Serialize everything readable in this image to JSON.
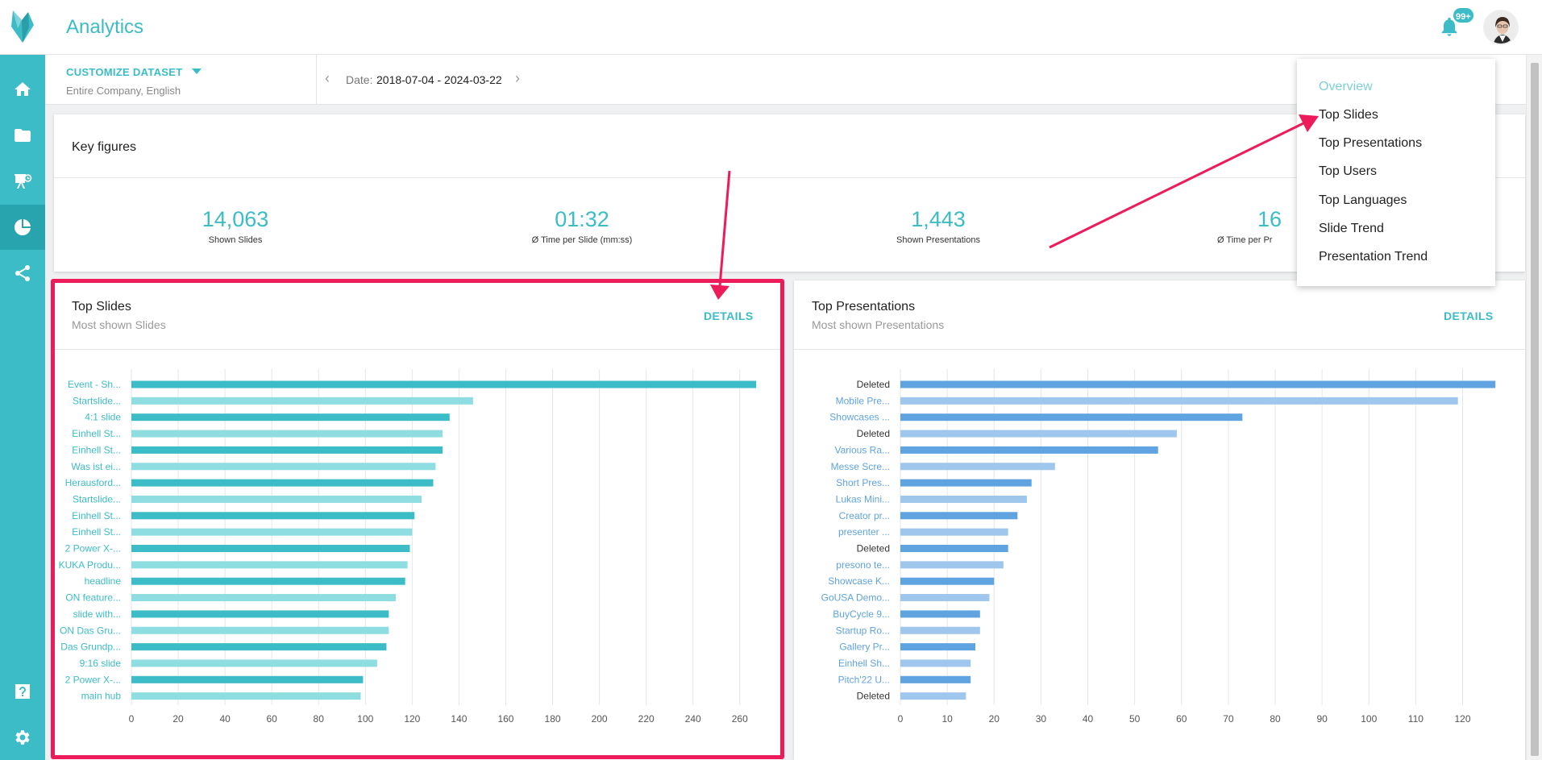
{
  "header": {
    "app_title": "Analytics",
    "notification_badge": "99+",
    "brand_color": "#3cbcc7"
  },
  "sidebar": {
    "items": [
      {
        "name": "home",
        "icon": "home-icon"
      },
      {
        "name": "folders",
        "icon": "folder-icon"
      },
      {
        "name": "presentations",
        "icon": "presentation-icon"
      },
      {
        "name": "analytics",
        "icon": "pie-chart-icon",
        "active": true
      },
      {
        "name": "share",
        "icon": "share-icon"
      }
    ],
    "bottom_items": [
      {
        "name": "help",
        "icon": "help-icon"
      },
      {
        "name": "settings",
        "icon": "gear-icon"
      }
    ]
  },
  "filter": {
    "dataset_label": "CUSTOMIZE DATASET",
    "dataset_value": "Entire Company, English",
    "date_label": "Date:",
    "date_value": "2018-07-04 - 2024-03-22"
  },
  "key_figures": {
    "title": "Key figures",
    "items": [
      {
        "value": "14,063",
        "label": "Shown Slides"
      },
      {
        "value": "01:32",
        "label": "Ø Time per Slide (mm:ss)"
      },
      {
        "value": "1,443",
        "label": "Shown Presentations"
      },
      {
        "value": "16",
        "label": "Ø Time per Pr"
      }
    ]
  },
  "top_slides": {
    "title": "Top Slides",
    "subtitle": "Most shown Slides",
    "details_label": "DETAILS"
  },
  "top_presentations": {
    "title": "Top Presentations",
    "subtitle": "Most shown Presentations",
    "details_label": "DETAILS"
  },
  "menu": {
    "items": [
      {
        "label": "Overview",
        "current": true
      },
      {
        "label": "Top Slides"
      },
      {
        "label": "Top Presentations"
      },
      {
        "label": "Top Users"
      },
      {
        "label": "Top Languages"
      },
      {
        "label": "Slide Trend"
      },
      {
        "label": "Presentation Trend"
      }
    ]
  },
  "chart_data": [
    {
      "type": "bar",
      "orientation": "horizontal",
      "categories": [
        "Event - Sh...",
        "Startslide...",
        "4:1 slide",
        "Einhell St...",
        "Einhell St...",
        "Was ist ei...",
        "Herausford...",
        "Startslide...",
        "Einhell St...",
        "Einhell St...",
        "2 Power X-...",
        "KUKA Produ...",
        "headline",
        "ON feature...",
        "slide with...",
        "ON Das Gru...",
        "Das Grundp...",
        "9:16 slide",
        "2 Power X-...",
        "main hub"
      ],
      "values": [
        267,
        146,
        136,
        133,
        133,
        130,
        129,
        124,
        121,
        120,
        119,
        118,
        117,
        113,
        110,
        110,
        109,
        105,
        99,
        98
      ],
      "xticks": [
        0,
        20,
        40,
        60,
        80,
        100,
        120,
        140,
        160,
        180,
        200,
        220,
        240,
        260
      ],
      "xlim": [
        0,
        268
      ],
      "colors": [
        "#3cbcc7",
        "#8edde1"
      ],
      "grid": true
    },
    {
      "type": "bar",
      "orientation": "horizontal",
      "categories": [
        "Deleted",
        "Mobile Pre...",
        "Showcases ...",
        "Deleted",
        "Various Ra...",
        "Messe Scre...",
        "Short Pres...",
        "Lukas Mini...",
        "Creator pr...",
        "presenter ...",
        "Deleted",
        "presono te...",
        "Showcase K...",
        "GoUSA Demo...",
        "BuyCycle 9...",
        "Startup Ro...",
        "Gallery Pr...",
        "Einhell Sh...",
        "Pitch'22 U...",
        "Deleted"
      ],
      "values": [
        127,
        119,
        73,
        59,
        55,
        33,
        28,
        27,
        25,
        23,
        23,
        22,
        20,
        19,
        17,
        17,
        16,
        15,
        15,
        14
      ],
      "xticks": [
        0,
        10,
        20,
        30,
        40,
        50,
        60,
        70,
        80,
        90,
        100,
        110,
        120
      ],
      "xlim": [
        0,
        128
      ],
      "colors": [
        "#5fa3e0",
        "#9fc6ec"
      ],
      "grid": true
    }
  ]
}
